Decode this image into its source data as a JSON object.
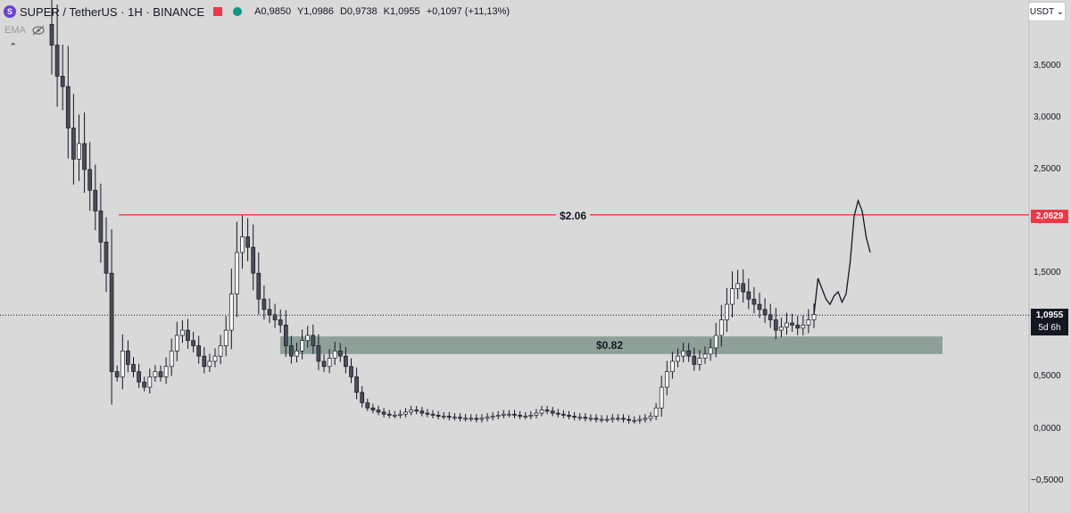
{
  "header": {
    "logo_letter": "S",
    "symbol": "SUPER / TetherUS · 1H · BINANCE",
    "ohlc": {
      "open": "A0,9850",
      "high": "Y1,0986",
      "low": "D0,9738",
      "close": "K1,0955",
      "change": "+0,1097 (+11,13%)"
    }
  },
  "indicator": {
    "name": "EMA"
  },
  "currency": "USDT ⌄",
  "price_axis": {
    "ticks": [
      "3,5000",
      "3,0000",
      "2,5000",
      "2,0000",
      "1,5000",
      "1,0000",
      "0,5000",
      "0,0000",
      "−0,5000"
    ]
  },
  "resistance": {
    "label": "$2.06",
    "tag": "2,0629",
    "color": "#f23645"
  },
  "support_zone": {
    "label": "$0.82",
    "color": "#8a9e96"
  },
  "current_price": {
    "value": "1,0955",
    "countdown": "5d 6h"
  },
  "chart_data": {
    "type": "candlestick",
    "title": "SUPER / TetherUS · 1H · BINANCE",
    "y_range": [
      -0.5,
      3.9
    ],
    "horizontal_line": 2.0629,
    "zone": [
      0.72,
      0.89
    ],
    "last_price": 1.0955,
    "close_series": [
      3.7,
      3.4,
      3.3,
      2.9,
      2.6,
      2.75,
      2.5,
      2.3,
      2.1,
      1.8,
      1.5,
      0.55,
      0.5,
      0.75,
      0.62,
      0.55,
      0.45,
      0.4,
      0.5,
      0.55,
      0.5,
      0.6,
      0.75,
      0.9,
      0.95,
      0.85,
      0.8,
      0.7,
      0.6,
      0.65,
      0.7,
      0.8,
      0.95,
      1.3,
      1.7,
      1.85,
      1.75,
      1.5,
      1.25,
      1.15,
      1.1,
      1.05,
      1.0,
      0.8,
      0.7,
      0.75,
      0.85,
      0.9,
      0.8,
      0.65,
      0.6,
      0.68,
      0.75,
      0.7,
      0.6,
      0.5,
      0.35,
      0.25,
      0.2,
      0.18,
      0.16,
      0.14,
      0.13,
      0.13,
      0.14,
      0.16,
      0.18,
      0.17,
      0.15,
      0.14,
      0.13,
      0.12,
      0.12,
      0.11,
      0.11,
      0.1,
      0.1,
      0.1,
      0.09,
      0.1,
      0.11,
      0.12,
      0.13,
      0.14,
      0.14,
      0.13,
      0.12,
      0.12,
      0.13,
      0.15,
      0.18,
      0.17,
      0.15,
      0.14,
      0.13,
      0.12,
      0.11,
      0.11,
      0.1,
      0.1,
      0.09,
      0.09,
      0.09,
      0.1,
      0.1,
      0.09,
      0.08,
      0.08,
      0.09,
      0.1,
      0.12,
      0.2,
      0.4,
      0.55,
      0.65,
      0.7,
      0.75,
      0.7,
      0.62,
      0.68,
      0.72,
      0.78,
      0.9,
      1.05,
      1.2,
      1.35,
      1.4,
      1.32,
      1.25,
      1.2,
      1.15,
      1.1,
      1.05,
      0.95,
      0.98,
      1.02,
      1.0,
      0.97,
      1.0,
      1.05,
      1.1
    ],
    "projection": [
      1.1,
      1.45,
      1.35,
      1.25,
      1.2,
      1.28,
      1.32,
      1.22,
      1.3,
      1.6,
      2.05,
      2.2,
      2.1,
      1.85,
      1.7
    ]
  }
}
